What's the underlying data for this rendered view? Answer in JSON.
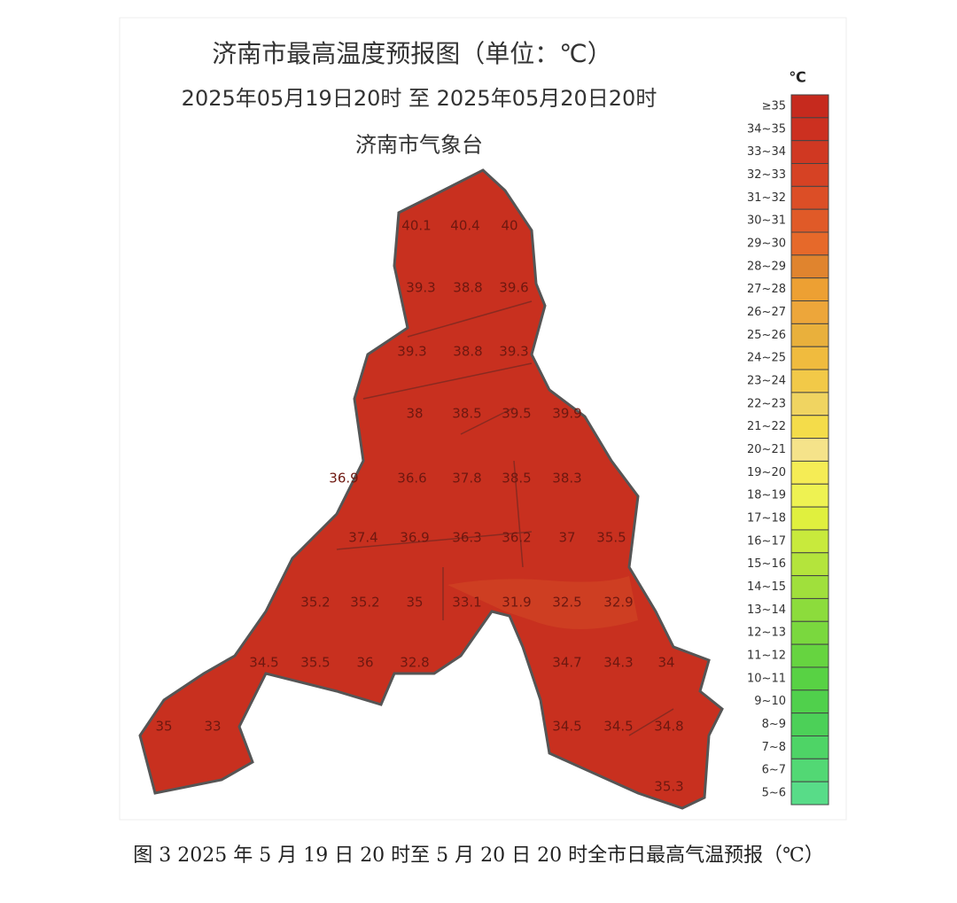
{
  "header": {
    "title": "济南市最高温度预报图（单位：℃）",
    "subtitle": "2025年05月19日20时  至  2025年05月20日20时",
    "issuer": "济南市气象台"
  },
  "legend": {
    "unit": "℃",
    "items": [
      {
        "label": "≥35",
        "color": "#c62a1e"
      },
      {
        "label": "34~35",
        "color": "#cc3020"
      },
      {
        "label": "33~34",
        "color": "#d03822"
      },
      {
        "label": "32~33",
        "color": "#d64224"
      },
      {
        "label": "31~32",
        "color": "#dc4e26"
      },
      {
        "label": "30~31",
        "color": "#e05a28"
      },
      {
        "label": "29~30",
        "color": "#e6692a"
      },
      {
        "label": "28~29",
        "color": "#e0842e"
      },
      {
        "label": "27~28",
        "color": "#eda033"
      },
      {
        "label": "26~27",
        "color": "#eda63a"
      },
      {
        "label": "25~26",
        "color": "#e9b03c"
      },
      {
        "label": "24~25",
        "color": "#f0bb3e"
      },
      {
        "label": "23~24",
        "color": "#f2c948"
      },
      {
        "label": "22~23",
        "color": "#f0d461"
      },
      {
        "label": "21~22",
        "color": "#f4dc4a"
      },
      {
        "label": "20~21",
        "color": "#f5e38a"
      },
      {
        "label": "19~20",
        "color": "#f5ec55"
      },
      {
        "label": "18~19",
        "color": "#eef252"
      },
      {
        "label": "17~18",
        "color": "#e0f03e"
      },
      {
        "label": "16~17",
        "color": "#c8ea3c"
      },
      {
        "label": "15~16",
        "color": "#b4e43c"
      },
      {
        "label": "14~15",
        "color": "#a0e03c"
      },
      {
        "label": "13~14",
        "color": "#8cdc3c"
      },
      {
        "label": "12~13",
        "color": "#7ad83e"
      },
      {
        "label": "11~12",
        "color": "#66d440"
      },
      {
        "label": "10~11",
        "color": "#58d244"
      },
      {
        "label": "9~10",
        "color": "#50d04c"
      },
      {
        "label": "8~9",
        "color": "#4cd058"
      },
      {
        "label": "7~8",
        "color": "#4ed466"
      },
      {
        "label": "6~7",
        "color": "#52d874"
      },
      {
        "label": "5~6",
        "color": "#58dc88"
      }
    ]
  },
  "map_labels": [
    40.1,
    40.4,
    40,
    39.3,
    38.8,
    39.6,
    39.3,
    38.8,
    39.3,
    38,
    38.5,
    39.5,
    39.9,
    36.9,
    36.6,
    37.8,
    38.5,
    38.3,
    37.4,
    36.9,
    36.3,
    36.2,
    37,
    35.5,
    35.2,
    35.2,
    35,
    33.1,
    31.9,
    32.5,
    32.9,
    34.5,
    35.5,
    36,
    32.8,
    34.7,
    34.3,
    34,
    35,
    33,
    34.5,
    34.5,
    34.8,
    35.3
  ],
  "caption": "图 3 2025 年 5 月 19 日 20 时至 5 月 20 日 20 时全市日最高气温预报（℃）"
}
